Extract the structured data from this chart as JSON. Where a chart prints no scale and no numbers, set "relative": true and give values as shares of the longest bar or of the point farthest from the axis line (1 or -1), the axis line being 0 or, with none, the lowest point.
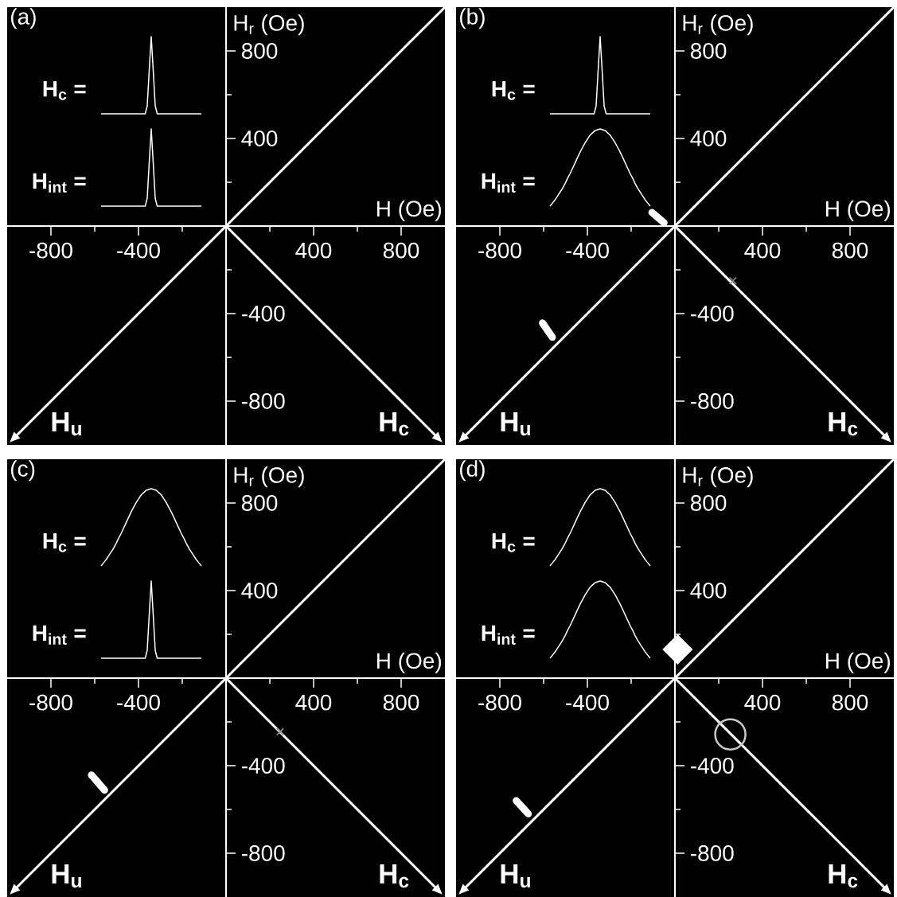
{
  "chart_data": [
    {
      "type": "line",
      "title": "(a)",
      "xlabel": "H (Oe)",
      "ylabel": "H$_{r}$ (Oe)",
      "xlim": [
        -1000,
        1000
      ],
      "ylim": [
        -1000,
        1000
      ],
      "xticks": [
        -800,
        {
          "value": -600,
          "label": null
        },
        -400,
        {
          "value": -200,
          "label": null
        },
        {
          "value": 200,
          "label": null
        },
        400,
        {
          "value": 600,
          "label": null
        },
        800
      ],
      "yticks": [
        -800,
        {
          "value": -600,
          "label": null
        },
        -400,
        {
          "value": -200,
          "label": null
        },
        {
          "value": 200,
          "label": null
        },
        400,
        {
          "value": 600,
          "label": null
        },
        800
      ],
      "annotations": [
        "H$_{u}$",
        "H$_{c}$"
      ]
    },
    {
      "type": "line",
      "relative": true,
      "categories": [
        null,
        null,
        null,
        null,
        null,
        null,
        null,
        null,
        null,
        null,
        null,
        null,
        null,
        null,
        null,
        null,
        null,
        null,
        null,
        null,
        null,
        null,
        null,
        null,
        null,
        null,
        null,
        null,
        null,
        null,
        null,
        null,
        null,
        null,
        null,
        null,
        null,
        null,
        null,
        null,
        null,
        null,
        null,
        null,
        null,
        null,
        null,
        null,
        null,
        null,
        null
      ],
      "series": [
        {
          "name": "H$_{c}$ =",
          "color": "#ffffff",
          "values": [
            0,
            0,
            0,
            0,
            0,
            0,
            0,
            0,
            0,
            0,
            0,
            0,
            0,
            0,
            0,
            0,
            0,
            0,
            0,
            0,
            0,
            0,
            0,
            0.1,
            0.56,
            1,
            0.56,
            0.1,
            0,
            0,
            0,
            0,
            0,
            0,
            0,
            0,
            0,
            0,
            0,
            0,
            0,
            0,
            0,
            0,
            0,
            0,
            0,
            0,
            0,
            0,
            0
          ]
        }
      ]
    },
    {
      "type": "line",
      "relative": true,
      "categories": [
        null,
        null,
        null,
        null,
        null,
        null,
        null,
        null,
        null,
        null,
        null,
        null,
        null,
        null,
        null,
        null,
        null,
        null,
        null,
        null,
        null,
        null,
        null,
        null,
        null,
        null,
        null,
        null,
        null,
        null,
        null,
        null,
        null,
        null,
        null,
        null,
        null,
        null,
        null,
        null,
        null,
        null,
        null,
        null,
        null,
        null,
        null,
        null,
        null,
        null,
        null
      ],
      "series": [
        {
          "name": "H$_{int}$ =",
          "color": "#ffffff",
          "values": [
            0,
            0,
            0,
            0,
            0,
            0,
            0,
            0,
            0,
            0,
            0,
            0,
            0,
            0,
            0,
            0,
            0,
            0,
            0,
            0,
            0,
            0,
            0,
            0.1,
            0.56,
            1,
            0.56,
            0.1,
            0,
            0,
            0,
            0,
            0,
            0,
            0,
            0,
            0,
            0,
            0,
            0,
            0,
            0,
            0,
            0,
            0,
            0,
            0,
            0,
            0,
            0,
            0
          ]
        }
      ]
    },
    {
      "type": "line",
      "title": "(b)",
      "xlabel": "H (Oe)",
      "ylabel": "H$_{r}$ (Oe)",
      "xlim": [
        -1000,
        1000
      ],
      "ylim": [
        -1000,
        1000
      ],
      "xticks": [
        -800,
        {
          "value": -600,
          "label": null
        },
        -400,
        {
          "value": -200,
          "label": null
        },
        {
          "value": 200,
          "label": null
        },
        400,
        {
          "value": 600,
          "label": null
        },
        800
      ],
      "yticks": [
        -800,
        {
          "value": -600,
          "label": null
        },
        -400,
        {
          "value": -200,
          "label": null
        },
        {
          "value": 200,
          "label": null
        },
        400,
        {
          "value": 600,
          "label": null
        },
        800
      ],
      "annotations": [
        "H$_{u}$",
        "H$_{c}$"
      ],
      "series": [
        {
          "type": "line",
          "color": "#ffffff",
          "x": [
            -105,
            -50
          ],
          "values": [
            62,
            15
          ]
        },
        {
          "type": "line",
          "color": "#ffffff",
          "x": [
            -605,
            -560
          ],
          "values": [
            -443,
            -508
          ]
        },
        {
          "type": "scatter",
          "marker": "cross",
          "color": "#909090",
          "x": [
            265
          ],
          "values": [
            -250
          ]
        }
      ]
    },
    {
      "type": "line",
      "relative": true,
      "categories": [
        null,
        null,
        null,
        null,
        null,
        null,
        null,
        null,
        null,
        null,
        null,
        null,
        null,
        null,
        null,
        null,
        null,
        null,
        null,
        null,
        null,
        null,
        null,
        null,
        null,
        null,
        null,
        null,
        null,
        null,
        null,
        null,
        null,
        null,
        null,
        null,
        null,
        null,
        null,
        null,
        null,
        null,
        null,
        null,
        null,
        null,
        null,
        null,
        null,
        null,
        null
      ],
      "series": [
        {
          "name": "H$_{c}$ =",
          "color": "#ffffff",
          "values": [
            0,
            0,
            0,
            0,
            0,
            0,
            0,
            0,
            0,
            0,
            0,
            0,
            0,
            0,
            0,
            0,
            0,
            0,
            0,
            0,
            0,
            0,
            0,
            0.1,
            0.56,
            1,
            0.56,
            0.1,
            0,
            0,
            0,
            0,
            0,
            0,
            0,
            0,
            0,
            0,
            0,
            0,
            0,
            0,
            0,
            0,
            0,
            0,
            0,
            0,
            0,
            0,
            0
          ]
        }
      ]
    },
    {
      "type": "line",
      "relative": true,
      "categories": [
        null,
        null,
        null,
        null,
        null,
        null,
        null,
        null,
        null,
        null,
        null,
        null,
        null,
        null,
        null,
        null,
        null,
        null,
        null,
        null,
        null,
        null,
        null,
        null,
        null,
        null,
        null,
        null,
        null,
        null,
        null,
        null,
        null,
        null,
        null,
        null,
        null,
        null,
        null,
        null,
        null
      ],
      "series": [
        {
          "name": "H$_{int}$ =",
          "color": "#ffffff",
          "values": [
            0,
            0.04,
            0.08,
            0.13,
            0.18,
            0.23,
            0.29,
            0.36,
            0.42,
            0.49,
            0.56,
            0.63,
            0.7,
            0.76,
            0.82,
            0.87,
            0.92,
            0.95,
            0.98,
            0.99,
            1,
            0.99,
            0.98,
            0.95,
            0.92,
            0.87,
            0.82,
            0.76,
            0.7,
            0.63,
            0.56,
            0.49,
            0.42,
            0.36,
            0.29,
            0.23,
            0.18,
            0.13,
            0.08,
            0.04,
            0
          ]
        }
      ]
    },
    {
      "type": "line",
      "title": "(c)",
      "xlabel": "H (Oe)",
      "ylabel": "H$_{r}$ (Oe)",
      "xlim": [
        -1000,
        1000
      ],
      "ylim": [
        -1000,
        1000
      ],
      "xticks": [
        -800,
        {
          "value": -600,
          "label": null
        },
        -400,
        {
          "value": -200,
          "label": null
        },
        {
          "value": 200,
          "label": null
        },
        400,
        {
          "value": 600,
          "label": null
        },
        800
      ],
      "yticks": [
        -800,
        {
          "value": -600,
          "label": null
        },
        -400,
        {
          "value": -200,
          "label": null
        },
        {
          "value": 200,
          "label": null
        },
        400,
        {
          "value": 600,
          "label": null
        },
        800
      ],
      "annotations": [
        "H$_{u}$",
        "H$_{c}$"
      ],
      "series": [
        {
          "type": "line",
          "color": "#ffffff",
          "x": [
            -615,
            -555
          ],
          "values": [
            -443,
            -512
          ]
        },
        {
          "type": "scatter",
          "marker": "cross",
          "color": "#909090",
          "x": [
            247
          ],
          "values": [
            -245
          ]
        }
      ]
    },
    {
      "type": "line",
      "relative": true,
      "categories": [
        null,
        null,
        null,
        null,
        null,
        null,
        null,
        null,
        null,
        null,
        null,
        null,
        null,
        null,
        null,
        null,
        null,
        null,
        null,
        null,
        null,
        null,
        null,
        null,
        null,
        null,
        null,
        null,
        null,
        null,
        null,
        null,
        null,
        null,
        null,
        null,
        null,
        null,
        null,
        null,
        null
      ],
      "series": [
        {
          "name": "H$_{c}$ =",
          "color": "#ffffff",
          "values": [
            0,
            0.04,
            0.08,
            0.13,
            0.18,
            0.23,
            0.29,
            0.36,
            0.42,
            0.49,
            0.56,
            0.63,
            0.7,
            0.76,
            0.82,
            0.87,
            0.92,
            0.95,
            0.98,
            0.99,
            1,
            0.99,
            0.98,
            0.95,
            0.92,
            0.87,
            0.82,
            0.76,
            0.7,
            0.63,
            0.56,
            0.49,
            0.42,
            0.36,
            0.29,
            0.23,
            0.18,
            0.13,
            0.08,
            0.04,
            0
          ]
        }
      ]
    },
    {
      "type": "line",
      "relative": true,
      "categories": [
        null,
        null,
        null,
        null,
        null,
        null,
        null,
        null,
        null,
        null,
        null,
        null,
        null,
        null,
        null,
        null,
        null,
        null,
        null,
        null,
        null,
        null,
        null,
        null,
        null,
        null,
        null,
        null,
        null,
        null,
        null,
        null,
        null,
        null,
        null,
        null,
        null,
        null,
        null,
        null,
        null,
        null,
        null,
        null,
        null,
        null,
        null,
        null,
        null,
        null,
        null
      ],
      "series": [
        {
          "name": "H$_{int}$ =",
          "color": "#ffffff",
          "values": [
            0,
            0,
            0,
            0,
            0,
            0,
            0,
            0,
            0,
            0,
            0,
            0,
            0,
            0,
            0,
            0,
            0,
            0,
            0,
            0,
            0,
            0,
            0,
            0.1,
            0.56,
            1,
            0.56,
            0.1,
            0,
            0,
            0,
            0,
            0,
            0,
            0,
            0,
            0,
            0,
            0,
            0,
            0,
            0,
            0,
            0,
            0,
            0,
            0,
            0,
            0,
            0,
            0
          ]
        }
      ]
    },
    {
      "type": "line",
      "title": "(d)",
      "xlabel": "H (Oe)",
      "ylabel": "H$_{r}$ (Oe)",
      "xlim": [
        -1000,
        1000
      ],
      "ylim": [
        -1000,
        1000
      ],
      "xticks": [
        -800,
        {
          "value": -600,
          "label": null
        },
        -400,
        {
          "value": -200,
          "label": null
        },
        {
          "value": 200,
          "label": null
        },
        400,
        {
          "value": 600,
          "label": null
        },
        800
      ],
      "yticks": [
        -800,
        {
          "value": -600,
          "label": null
        },
        -400,
        {
          "value": -200,
          "label": null
        },
        {
          "value": 200,
          "label": null
        },
        400,
        {
          "value": 600,
          "label": null
        },
        800
      ],
      "annotations": [
        "H$_{u}$",
        "H$_{c}$"
      ],
      "series": [
        {
          "type": "scatter",
          "marker": "diamond",
          "color": "#ffffff",
          "x": [
            12
          ],
          "values": [
            131
          ]
        },
        {
          "type": "scatter",
          "marker": "circle",
          "color": "#c8c8c8",
          "x": [
            253
          ],
          "values": [
            -257
          ]
        },
        {
          "type": "line",
          "color": "#ffffff",
          "x": [
            -725,
            -670
          ],
          "values": [
            -560,
            -620
          ]
        }
      ]
    },
    {
      "type": "line",
      "relative": true,
      "categories": [
        null,
        null,
        null,
        null,
        null,
        null,
        null,
        null,
        null,
        null,
        null,
        null,
        null,
        null,
        null,
        null,
        null,
        null,
        null,
        null,
        null,
        null,
        null,
        null,
        null,
        null,
        null,
        null,
        null,
        null,
        null,
        null,
        null,
        null,
        null,
        null,
        null,
        null,
        null,
        null,
        null
      ],
      "series": [
        {
          "name": "H$_{c}$ =",
          "color": "#ffffff",
          "values": [
            0,
            0.04,
            0.08,
            0.13,
            0.18,
            0.23,
            0.29,
            0.36,
            0.42,
            0.49,
            0.56,
            0.63,
            0.7,
            0.76,
            0.82,
            0.87,
            0.92,
            0.95,
            0.98,
            0.99,
            1,
            0.99,
            0.98,
            0.95,
            0.92,
            0.87,
            0.82,
            0.76,
            0.7,
            0.63,
            0.56,
            0.49,
            0.42,
            0.36,
            0.29,
            0.23,
            0.18,
            0.13,
            0.08,
            0.04,
            0
          ]
        }
      ]
    },
    {
      "type": "line",
      "relative": true,
      "categories": [
        null,
        null,
        null,
        null,
        null,
        null,
        null,
        null,
        null,
        null,
        null,
        null,
        null,
        null,
        null,
        null,
        null,
        null,
        null,
        null,
        null,
        null,
        null,
        null,
        null,
        null,
        null,
        null,
        null,
        null,
        null,
        null,
        null,
        null,
        null,
        null,
        null,
        null,
        null,
        null,
        null
      ],
      "series": [
        {
          "name": "H$_{int}$ =",
          "color": "#ffffff",
          "values": [
            0,
            0.04,
            0.08,
            0.13,
            0.18,
            0.23,
            0.29,
            0.36,
            0.42,
            0.49,
            0.56,
            0.63,
            0.7,
            0.76,
            0.82,
            0.87,
            0.92,
            0.95,
            0.98,
            0.99,
            1,
            0.99,
            0.98,
            0.95,
            0.92,
            0.87,
            0.82,
            0.76,
            0.7,
            0.63,
            0.56,
            0.49,
            0.42,
            0.36,
            0.29,
            0.23,
            0.18,
            0.13,
            0.08,
            0.04,
            0
          ]
        }
      ]
    }
  ]
}
